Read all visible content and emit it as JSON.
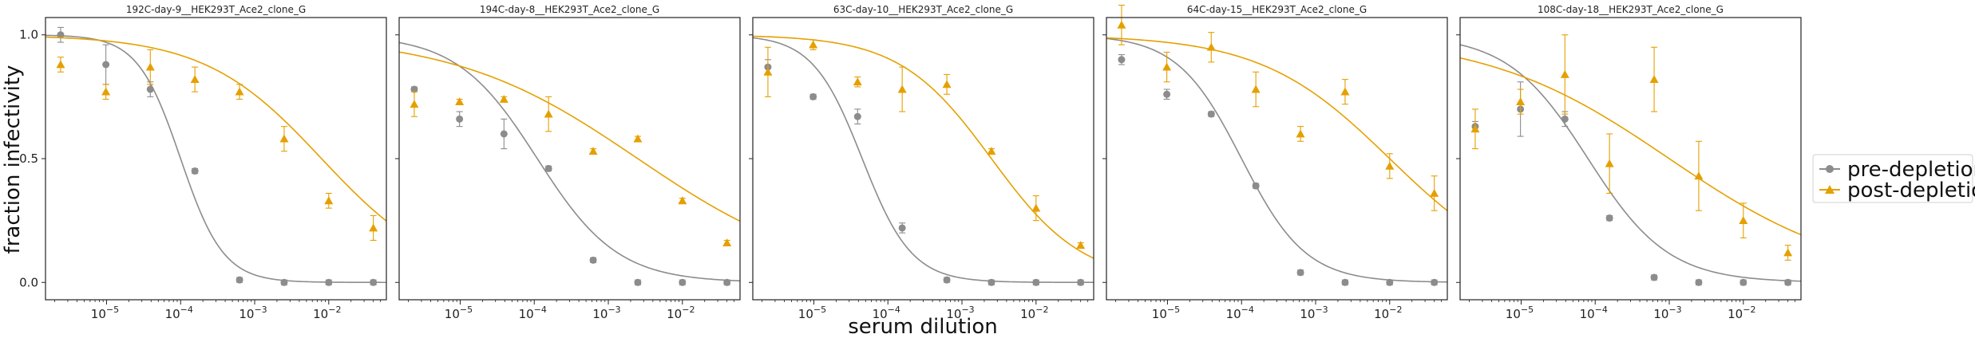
{
  "figure": {
    "xlabel": "serum dilution",
    "ylabel": "fraction infectivity"
  },
  "legend": {
    "placement": "right",
    "entries": [
      {
        "label": "pre-depletion",
        "marker": "circle",
        "color": "#8c8c8c"
      },
      {
        "label": "post-depletion",
        "marker": "triangle",
        "color": "#e5a000"
      }
    ]
  },
  "chart_data": [
    {
      "type": "scatter",
      "title": "192C-day-9__HEK293T_Ace2_clone_G",
      "xscale": "log",
      "xlim": [
        1.5e-06,
        0.06
      ],
      "ylim": [
        -0.07,
        1.07
      ],
      "xticks": [
        "10",
        "10",
        "10",
        "10"
      ],
      "xtick_exponents": [
        "−5",
        "−4",
        "−3",
        "−2"
      ],
      "xtick_values": [
        1e-05,
        0.0001,
        0.001,
        0.01
      ],
      "yticks": [
        "0.0",
        "0.5",
        "1.0"
      ],
      "ytick_values": [
        0,
        0.5,
        1.0
      ],
      "series": [
        {
          "name": "pre-depletion",
          "color": "#8c8c8c",
          "marker": "circle",
          "x": [
            2.4e-06,
            9.8e-06,
            3.9e-05,
            0.000156,
            0.000625,
            0.0025,
            0.01,
            0.04
          ],
          "y": [
            1.0,
            0.88,
            0.78,
            0.45,
            0.01,
            0.0,
            0.0,
            0.0
          ],
          "err": [
            0.03,
            0.08,
            0.03,
            0.01,
            0.01,
            0.01,
            0.01,
            0.01
          ],
          "fit": {
            "ic50": 0.0001,
            "hill": 1.5,
            "top": 1.0,
            "bottom": 0.0
          }
        },
        {
          "name": "post-depletion",
          "color": "#e5a000",
          "marker": "triangle",
          "x": [
            2.4e-06,
            9.8e-06,
            3.9e-05,
            0.000156,
            0.000625,
            0.0025,
            0.01,
            0.04
          ],
          "y": [
            0.88,
            0.77,
            0.87,
            0.82,
            0.77,
            0.58,
            0.33,
            0.22
          ],
          "err": [
            0.03,
            0.03,
            0.07,
            0.05,
            0.03,
            0.05,
            0.03,
            0.05
          ],
          "fit": {
            "ic50": 0.008,
            "hill": 0.55,
            "top": 1.0,
            "bottom": 0.0
          }
        }
      ]
    },
    {
      "type": "scatter",
      "title": "194C-day-8__HEK293T_Ace2_clone_G",
      "xscale": "log",
      "xlim": [
        1.5e-06,
        0.06
      ],
      "ylim": [
        -0.07,
        1.07
      ],
      "xticks": [
        "10",
        "10",
        "10",
        "10"
      ],
      "xtick_exponents": [
        "−5",
        "−4",
        "−3",
        "−2"
      ],
      "xtick_values": [
        1e-05,
        0.0001,
        0.001,
        0.01
      ],
      "yticks": [
        "0.0",
        "0.5",
        "1.0"
      ],
      "ytick_values": [
        0,
        0.5,
        1.0
      ],
      "series": [
        {
          "name": "pre-depletion",
          "color": "#8c8c8c",
          "marker": "circle",
          "x": [
            2.4e-06,
            9.8e-06,
            3.9e-05,
            0.000156,
            0.000625,
            0.0025,
            0.01,
            0.04
          ],
          "y": [
            0.78,
            0.66,
            0.6,
            0.46,
            0.09,
            0.0,
            0.0,
            0.0
          ],
          "err": [
            0.01,
            0.03,
            0.06,
            0.01,
            0.01,
            0.01,
            0.01,
            0.01
          ],
          "fit": {
            "ic50": 0.00011,
            "hill": 0.8,
            "top": 1.0,
            "bottom": 0.0
          }
        },
        {
          "name": "post-depletion",
          "color": "#e5a000",
          "marker": "triangle",
          "x": [
            2.4e-06,
            9.8e-06,
            3.9e-05,
            0.000156,
            0.000625,
            0.0025,
            0.01,
            0.04
          ],
          "y": [
            0.72,
            0.73,
            0.74,
            0.68,
            0.53,
            0.58,
            0.33,
            0.16
          ],
          "err": [
            0.05,
            0.01,
            0.01,
            0.07,
            0.01,
            0.01,
            0.01,
            0.01
          ],
          "fit": {
            "ic50": 0.0025,
            "hill": 0.35,
            "top": 1.0,
            "bottom": 0.0
          }
        }
      ]
    },
    {
      "type": "scatter",
      "title": "63C-day-10__HEK293T_Ace2_clone_G",
      "xscale": "log",
      "xlim": [
        1.5e-06,
        0.06
      ],
      "ylim": [
        -0.07,
        1.07
      ],
      "xticks": [
        "10",
        "10",
        "10",
        "10"
      ],
      "xtick_exponents": [
        "−5",
        "−4",
        "−3",
        "−2"
      ],
      "xtick_values": [
        1e-05,
        0.0001,
        0.001,
        0.01
      ],
      "yticks": [
        "0.0",
        "0.5",
        "1.0"
      ],
      "ytick_values": [
        0,
        0.5,
        1.0
      ],
      "series": [
        {
          "name": "pre-depletion",
          "color": "#8c8c8c",
          "marker": "circle",
          "x": [
            2.4e-06,
            9.8e-06,
            3.9e-05,
            0.000156,
            0.000625,
            0.0025,
            0.01,
            0.04
          ],
          "y": [
            0.87,
            0.75,
            0.67,
            0.22,
            0.01,
            0.0,
            0.0,
            0.0
          ],
          "err": [
            0.03,
            0.01,
            0.03,
            0.02,
            0.01,
            0.01,
            0.01,
            0.01
          ],
          "fit": {
            "ic50": 4.5e-05,
            "hill": 1.3,
            "top": 1.0,
            "bottom": 0.0
          }
        },
        {
          "name": "post-depletion",
          "color": "#e5a000",
          "marker": "triangle",
          "x": [
            2.4e-06,
            9.8e-06,
            3.9e-05,
            0.000156,
            0.000625,
            0.0025,
            0.01,
            0.04
          ],
          "y": [
            0.85,
            0.96,
            0.81,
            0.78,
            0.8,
            0.53,
            0.3,
            0.15
          ],
          "err": [
            0.1,
            0.02,
            0.02,
            0.09,
            0.04,
            0.01,
            0.05,
            0.01
          ],
          "fit": {
            "ic50": 0.0025,
            "hill": 0.7,
            "top": 1.0,
            "bottom": 0.0
          }
        }
      ]
    },
    {
      "type": "scatter",
      "title": "64C-day-15__HEK293T_Ace2_clone_G",
      "xscale": "log",
      "xlim": [
        1.5e-06,
        0.06
      ],
      "ylim": [
        -0.07,
        1.07
      ],
      "xticks": [
        "10",
        "10",
        "10",
        "10"
      ],
      "xtick_exponents": [
        "−5",
        "−4",
        "−3",
        "−2"
      ],
      "xtick_values": [
        1e-05,
        0.0001,
        0.001,
        0.01
      ],
      "yticks": [
        "0.0",
        "0.5",
        "1.0"
      ],
      "ytick_values": [
        0,
        0.5,
        1.0
      ],
      "series": [
        {
          "name": "pre-depletion",
          "color": "#8c8c8c",
          "marker": "circle",
          "x": [
            2.4e-06,
            9.8e-06,
            3.9e-05,
            0.000156,
            0.000625,
            0.0025,
            0.01,
            0.04
          ],
          "y": [
            0.9,
            0.76,
            0.68,
            0.39,
            0.04,
            0.0,
            0.0,
            0.0
          ],
          "err": [
            0.02,
            0.02,
            0.01,
            0.01,
            0.01,
            0.01,
            0.01,
            0.01
          ],
          "fit": {
            "ic50": 0.0001,
            "hill": 1.0,
            "top": 1.0,
            "bottom": 0.0
          }
        },
        {
          "name": "post-depletion",
          "color": "#e5a000",
          "marker": "triangle",
          "x": [
            2.4e-06,
            9.8e-06,
            3.9e-05,
            0.000156,
            0.000625,
            0.0025,
            0.01,
            0.04
          ],
          "y": [
            1.04,
            0.87,
            0.95,
            0.78,
            0.6,
            0.77,
            0.47,
            0.36
          ],
          "err": [
            0.08,
            0.06,
            0.06,
            0.07,
            0.03,
            0.05,
            0.05,
            0.07
          ],
          "fit": {
            "ic50": 0.01,
            "hill": 0.5,
            "top": 1.0,
            "bottom": 0.0
          }
        }
      ]
    },
    {
      "type": "scatter",
      "title": "108C-day-18__HEK293T_Ace2_clone_G",
      "xscale": "log",
      "xlim": [
        1.5e-06,
        0.06
      ],
      "ylim": [
        -0.07,
        1.07
      ],
      "xticks": [
        "10",
        "10",
        "10",
        "10"
      ],
      "xtick_exponents": [
        "−5",
        "−4",
        "−3",
        "−2"
      ],
      "xtick_values": [
        1e-05,
        0.0001,
        0.001,
        0.01
      ],
      "yticks": [
        "0.0",
        "0.5",
        "1.0"
      ],
      "ytick_values": [
        0,
        0.5,
        1.0
      ],
      "series": [
        {
          "name": "pre-depletion",
          "color": "#8c8c8c",
          "marker": "circle",
          "x": [
            2.4e-06,
            9.8e-06,
            3.9e-05,
            0.000156,
            0.000625,
            0.0025,
            0.01,
            0.04
          ],
          "y": [
            0.63,
            0.7,
            0.66,
            0.26,
            0.02,
            0.0,
            0.0,
            0.0
          ],
          "err": [
            0.02,
            0.11,
            0.03,
            0.01,
            0.01,
            0.01,
            0.01,
            0.01
          ],
          "fit": {
            "ic50": 8e-05,
            "hill": 0.8,
            "top": 1.0,
            "bottom": 0.0
          }
        },
        {
          "name": "post-depletion",
          "color": "#e5a000",
          "marker": "triangle",
          "x": [
            2.4e-06,
            9.8e-06,
            3.9e-05,
            0.000156,
            0.000625,
            0.0025,
            0.01,
            0.04
          ],
          "y": [
            0.62,
            0.73,
            0.84,
            0.48,
            0.82,
            0.43,
            0.25,
            0.12
          ],
          "err": [
            0.08,
            0.05,
            0.16,
            0.12,
            0.13,
            0.14,
            0.07,
            0.03
          ],
          "fit": {
            "ic50": 0.001,
            "hill": 0.35,
            "top": 1.0,
            "bottom": 0.0
          }
        }
      ]
    }
  ]
}
